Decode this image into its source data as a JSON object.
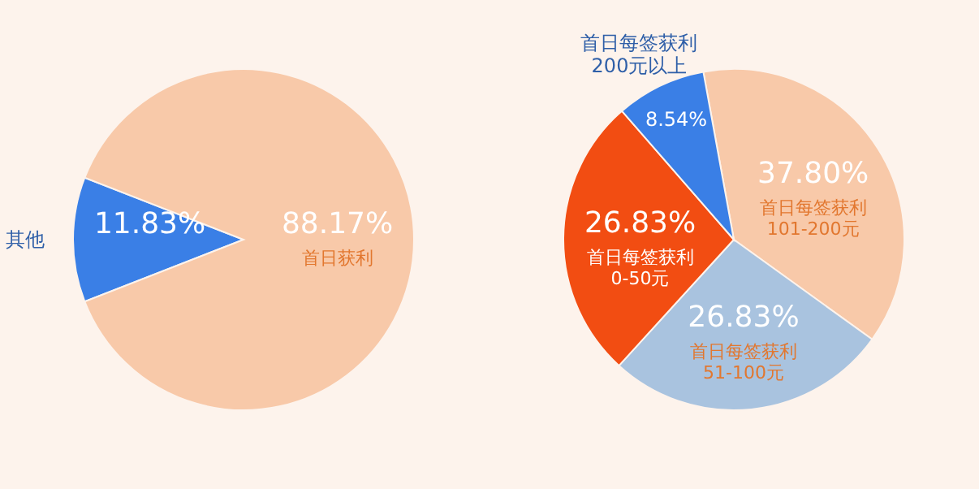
{
  "chart_data": [
    {
      "type": "pie",
      "categories": [
        "其他",
        "首日获利"
      ],
      "values": [
        11.83,
        88.17
      ],
      "value_labels": [
        "11.83%",
        "88.17%"
      ],
      "colors": [
        "#3a7fe6",
        "#f8c9a9"
      ]
    },
    {
      "type": "pie",
      "categories": [
        "首日每签获利 101-200元",
        "首日每签获利 51-100元",
        "首日每签获利 0-50元",
        "首日每签获利 200元以上"
      ],
      "values": [
        37.8,
        26.83,
        26.83,
        8.54
      ],
      "value_labels": [
        "37.80%",
        "26.83%",
        "26.83%",
        "8.54%"
      ],
      "colors": [
        "#f8c9a9",
        "#a9c3df",
        "#f24d12",
        "#3a7fe6"
      ]
    }
  ]
}
